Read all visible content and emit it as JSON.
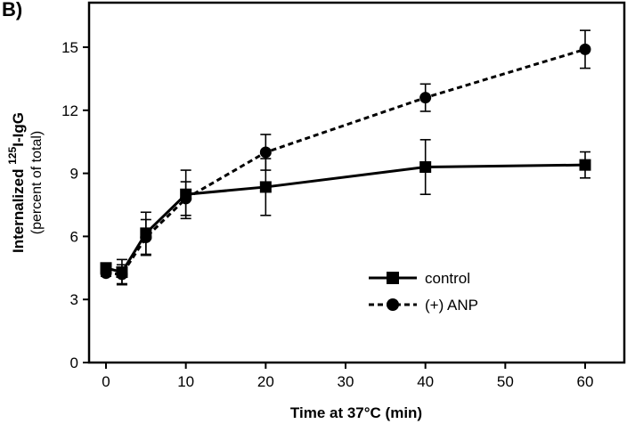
{
  "panel_label": "B)",
  "chart_data": {
    "type": "line",
    "xlabel": "Time at 37°C (min)",
    "ylabel": {
      "prefix": "Internalized ",
      "superscript": "125",
      "suffix": "I-IgG",
      "sub": "(percent of total)"
    },
    "xlim": [
      0,
      60
    ],
    "ylim": [
      0,
      15
    ],
    "xticks": [
      0,
      10,
      20,
      30,
      40,
      50,
      60
    ],
    "yticks": [
      0,
      3,
      6,
      9,
      12,
      15
    ],
    "legend_position": "lower-right",
    "series": [
      {
        "name": "control",
        "marker": "square",
        "line": "solid",
        "points": [
          {
            "x": 0,
            "y": 4.5,
            "err": 0.15
          },
          {
            "x": 2,
            "y": 4.3,
            "err": 0.6
          },
          {
            "x": 5,
            "y": 6.15,
            "err": 1.0
          },
          {
            "x": 10,
            "y": 8.0,
            "err": 1.15
          },
          {
            "x": 20,
            "y": 8.35,
            "err": 1.35
          },
          {
            "x": 40,
            "y": 9.3,
            "err": 1.3
          },
          {
            "x": 60,
            "y": 9.4,
            "err": 0.62
          }
        ]
      },
      {
        "name": "(+) ANP",
        "marker": "circle",
        "line": "dashed",
        "points": [
          {
            "x": 0,
            "y": 4.25,
            "err": 0.15
          },
          {
            "x": 2,
            "y": 4.2,
            "err": 0.45
          },
          {
            "x": 5,
            "y": 5.95,
            "err": 0.85
          },
          {
            "x": 10,
            "y": 7.8,
            "err": 0.8
          },
          {
            "x": 20,
            "y": 10.0,
            "err": 0.85
          },
          {
            "x": 40,
            "y": 12.6,
            "err": 0.65
          },
          {
            "x": 60,
            "y": 14.9,
            "err": 0.9
          }
        ]
      }
    ]
  }
}
